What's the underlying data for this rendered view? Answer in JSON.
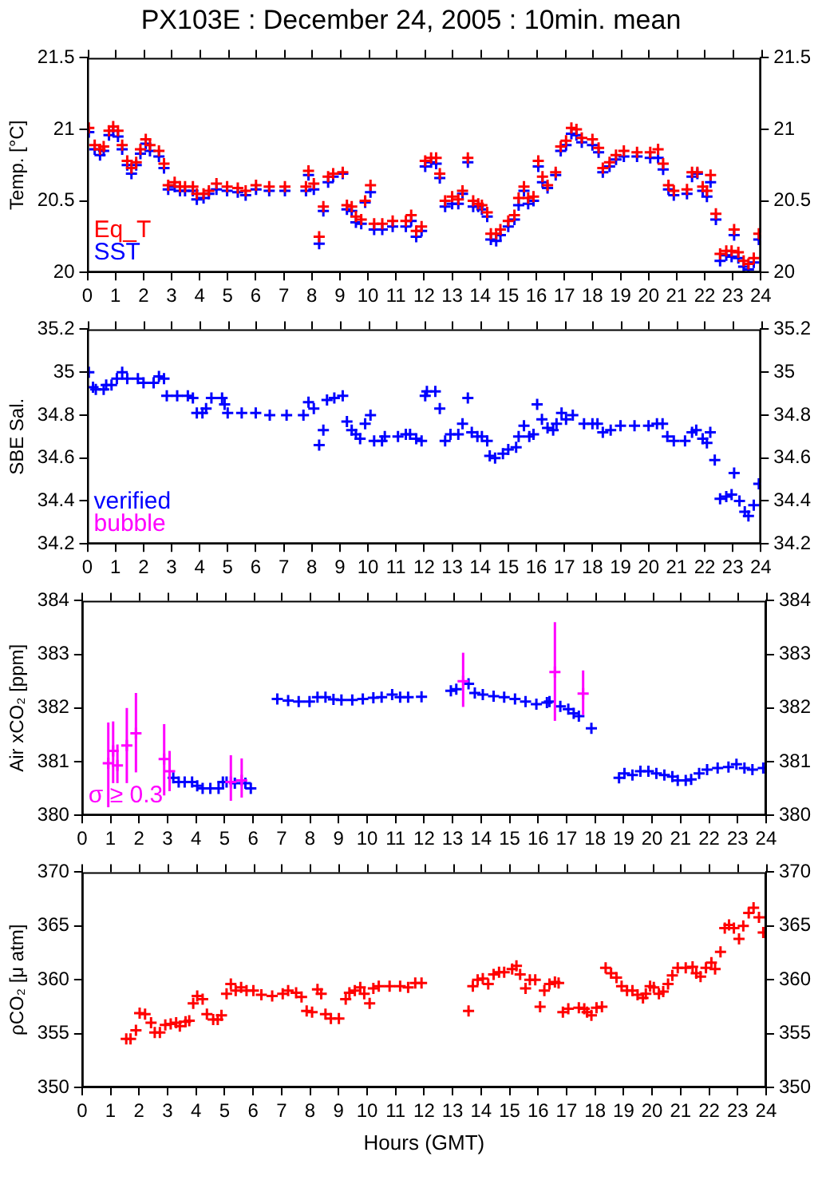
{
  "chart_data": [
    {
      "type": "scatter",
      "title": "PX103E : December 24, 2005 : 10min. mean",
      "ylabel": "Temp. [°C]",
      "xlim": [
        0,
        24
      ],
      "xticks": [
        0,
        1,
        2,
        3,
        4,
        5,
        6,
        7,
        8,
        9,
        10,
        11,
        12,
        13,
        14,
        15,
        16,
        17,
        18,
        19,
        20,
        21,
        22,
        23,
        24
      ],
      "ylim": [
        20,
        21.5
      ],
      "yticks": [
        20,
        20.5,
        21,
        21.5
      ],
      "y2lim": [
        20,
        21.5
      ],
      "y2ticks": [
        20,
        20.5,
        21,
        21.5
      ],
      "marker": "cross",
      "grid": false,
      "legend": "bottom left",
      "series": [
        {
          "name": "Eq_T",
          "color": "#ff0000",
          "x": [
            0.05,
            0.26,
            0.45,
            0.58,
            0.77,
            0.92,
            1.09,
            1.24,
            1.42,
            1.57,
            1.74,
            1.89,
            2.08,
            2.23,
            2.55,
            2.73,
            2.88,
            3.11,
            3.3,
            3.48,
            3.76,
            3.9,
            4.14,
            4.33,
            4.6,
            4.98,
            5.36,
            5.64,
            6.01,
            6.48,
            7.04,
            7.79,
            7.88,
            8.07,
            8.26,
            8.41,
            8.58,
            8.76,
            9.1,
            9.25,
            9.42,
            9.57,
            9.76,
            9.9,
            10.09,
            10.22,
            10.51,
            10.88,
            11.35,
            11.54,
            11.72,
            11.91,
            12.04,
            12.25,
            12.43,
            12.56,
            12.75,
            13.0,
            13.22,
            13.37,
            13.56,
            13.75,
            13.93,
            14.06,
            14.25,
            14.38,
            14.57,
            14.72,
            15.0,
            15.22,
            15.37,
            15.56,
            15.71,
            15.9,
            16.07,
            16.22,
            16.4,
            16.69,
            16.87,
            17.06,
            17.25,
            17.43,
            17.62,
            18.0,
            18.22,
            18.37,
            18.61,
            18.84,
            19.12,
            19.59,
            20.06,
            20.34,
            20.52,
            20.71,
            20.9,
            21.37,
            21.55,
            21.74,
            21.93,
            22.08,
            22.21,
            22.4,
            22.55,
            22.77,
            22.96,
            23.05,
            23.2,
            23.39,
            23.56,
            23.75,
            23.93
          ],
          "values": [
            21.01,
            20.89,
            20.86,
            20.88,
            20.99,
            21.02,
            20.99,
            20.89,
            20.78,
            20.73,
            20.77,
            20.86,
            20.93,
            20.89,
            20.85,
            20.76,
            20.61,
            20.63,
            20.6,
            20.6,
            20.6,
            20.55,
            20.55,
            20.57,
            20.62,
            20.6,
            20.59,
            20.57,
            20.61,
            20.6,
            20.6,
            20.6,
            20.71,
            20.62,
            20.25,
            20.46,
            20.67,
            20.69,
            20.7,
            20.47,
            20.46,
            20.39,
            20.37,
            20.5,
            20.61,
            20.34,
            20.34,
            20.36,
            20.36,
            20.4,
            20.29,
            20.32,
            20.78,
            20.8,
            20.8,
            20.69,
            20.5,
            20.53,
            20.51,
            20.57,
            20.8,
            20.5,
            20.48,
            20.47,
            20.42,
            20.27,
            20.27,
            20.3,
            20.36,
            20.4,
            20.52,
            20.6,
            20.52,
            20.53,
            20.78,
            20.67,
            20.61,
            20.7,
            20.88,
            20.92,
            21.01,
            21.0,
            20.94,
            20.93,
            20.87,
            20.73,
            20.77,
            20.82,
            20.85,
            20.84,
            20.84,
            20.86,
            20.76,
            20.61,
            20.57,
            20.58,
            20.7,
            20.7,
            20.6,
            20.57,
            20.68,
            20.41,
            20.13,
            20.15,
            20.15,
            20.3,
            20.14,
            20.08,
            20.06,
            20.1,
            20.27
          ]
        },
        {
          "name": "SST",
          "color": "#0000ff",
          "x": [
            0.05,
            0.26,
            0.45,
            0.58,
            0.77,
            0.92,
            1.09,
            1.24,
            1.42,
            1.57,
            1.74,
            1.89,
            2.08,
            2.23,
            2.55,
            2.73,
            2.88,
            3.11,
            3.3,
            3.48,
            3.76,
            3.9,
            4.14,
            4.33,
            4.6,
            4.98,
            5.36,
            5.64,
            6.01,
            6.48,
            7.04,
            7.79,
            7.88,
            8.07,
            8.26,
            8.41,
            8.58,
            8.76,
            9.1,
            9.25,
            9.42,
            9.57,
            9.76,
            9.9,
            10.09,
            10.22,
            10.51,
            10.88,
            11.35,
            11.54,
            11.72,
            11.91,
            12.04,
            12.25,
            12.43,
            12.56,
            12.75,
            13.0,
            13.22,
            13.37,
            13.56,
            13.75,
            13.93,
            14.06,
            14.25,
            14.38,
            14.57,
            14.72,
            15.0,
            15.22,
            15.37,
            15.56,
            15.71,
            15.9,
            16.07,
            16.22,
            16.4,
            16.69,
            16.87,
            17.06,
            17.25,
            17.43,
            17.62,
            18.0,
            18.22,
            18.37,
            18.61,
            18.84,
            19.12,
            19.59,
            20.06,
            20.34,
            20.52,
            20.71,
            20.9,
            21.37,
            21.55,
            21.74,
            21.93,
            22.08,
            22.21,
            22.4,
            22.55,
            22.77,
            22.96,
            23.05,
            23.2,
            23.39,
            23.56,
            23.75,
            23.93
          ],
          "values": [
            20.98,
            20.86,
            20.82,
            20.85,
            20.96,
            20.99,
            20.95,
            20.86,
            20.75,
            20.69,
            20.75,
            20.83,
            20.9,
            20.85,
            20.81,
            20.73,
            20.58,
            20.6,
            20.57,
            20.57,
            20.57,
            20.51,
            20.52,
            20.55,
            20.58,
            20.57,
            20.56,
            20.54,
            20.58,
            20.57,
            20.57,
            20.57,
            20.68,
            20.58,
            20.2,
            20.43,
            20.63,
            20.67,
            20.69,
            20.44,
            20.43,
            20.35,
            20.34,
            20.49,
            20.56,
            20.3,
            20.3,
            20.32,
            20.32,
            20.36,
            20.25,
            20.29,
            20.74,
            20.77,
            20.76,
            20.66,
            20.46,
            20.48,
            20.48,
            20.55,
            20.77,
            20.46,
            20.46,
            20.44,
            20.39,
            20.23,
            20.22,
            20.26,
            20.32,
            20.37,
            20.47,
            20.57,
            20.48,
            20.5,
            20.74,
            20.63,
            20.59,
            20.68,
            20.85,
            20.89,
            20.97,
            20.96,
            20.91,
            20.89,
            20.84,
            20.7,
            20.74,
            20.79,
            20.81,
            20.81,
            20.8,
            20.8,
            20.72,
            20.58,
            20.54,
            20.55,
            20.67,
            20.69,
            20.57,
            20.53,
            20.63,
            20.37,
            20.08,
            20.12,
            20.11,
            20.26,
            20.1,
            20.04,
            20.02,
            20.07,
            20.23
          ]
        }
      ]
    },
    {
      "type": "scatter",
      "ylabel": "SBE Sal.",
      "xlim": [
        0,
        24
      ],
      "xticks": [
        0,
        1,
        2,
        3,
        4,
        5,
        6,
        7,
        8,
        9,
        10,
        11,
        12,
        13,
        14,
        15,
        16,
        17,
        18,
        19,
        20,
        21,
        22,
        23,
        24
      ],
      "ylim": [
        34.2,
        35.2
      ],
      "yticks": [
        34.2,
        34.4,
        34.6,
        34.8,
        35,
        35.2
      ],
      "y2lim": [
        34.2,
        35.2
      ],
      "y2ticks": [
        34.2,
        34.4,
        34.6,
        34.8,
        35,
        35.2
      ],
      "marker": "cross",
      "grid": false,
      "legend": "bottom left",
      "series": [
        {
          "name": "verified",
          "color": "#0000ff",
          "x": [
            0.05,
            0.2,
            0.3,
            0.58,
            0.67,
            0.86,
            1.05,
            1.24,
            1.42,
            1.8,
            2.0,
            2.36,
            2.55,
            2.73,
            2.83,
            3.2,
            3.58,
            3.76,
            3.9,
            4.1,
            4.23,
            4.42,
            4.8,
            4.89,
            5.0,
            5.5,
            6.0,
            6.5,
            7.1,
            7.7,
            7.88,
            8.07,
            8.26,
            8.41,
            8.54,
            8.8,
            9.1,
            9.25,
            9.42,
            9.57,
            9.72,
            9.9,
            10.09,
            10.22,
            10.5,
            10.6,
            11.07,
            11.35,
            11.5,
            11.72,
            11.91,
            12.04,
            12.1,
            12.4,
            12.56,
            12.75,
            12.94,
            13.22,
            13.37,
            13.56,
            13.7,
            13.9,
            14.06,
            14.25,
            14.34,
            14.53,
            14.81,
            15.0,
            15.28,
            15.37,
            15.56,
            15.75,
            15.9,
            16.03,
            16.2,
            16.4,
            16.6,
            16.72,
            16.9,
            17.06,
            17.3,
            17.7,
            18.0,
            18.18,
            18.37,
            18.65,
            19.0,
            19.5,
            20.0,
            20.3,
            20.5,
            20.67,
            20.9,
            21.3,
            21.55,
            21.7,
            21.93,
            22.08,
            22.2,
            22.36,
            22.55,
            22.77,
            22.96,
            23.05,
            23.24,
            23.43,
            23.56,
            23.75,
            23.93
          ],
          "values": [
            35.0,
            34.93,
            34.92,
            34.92,
            34.94,
            34.94,
            34.97,
            35.0,
            34.97,
            34.97,
            34.95,
            34.95,
            34.98,
            34.97,
            34.89,
            34.89,
            34.89,
            34.88,
            34.81,
            34.81,
            34.83,
            34.88,
            34.88,
            34.85,
            34.81,
            34.81,
            34.81,
            34.8,
            34.8,
            34.8,
            34.86,
            34.83,
            34.66,
            34.73,
            34.87,
            34.88,
            34.89,
            34.77,
            34.73,
            34.71,
            34.69,
            34.76,
            34.8,
            34.68,
            34.68,
            34.7,
            34.7,
            34.71,
            34.71,
            34.69,
            34.68,
            34.89,
            34.91,
            34.91,
            34.83,
            34.68,
            34.71,
            34.71,
            34.76,
            34.88,
            34.72,
            34.7,
            34.7,
            34.68,
            34.61,
            34.6,
            34.62,
            34.64,
            34.65,
            34.7,
            34.75,
            34.7,
            34.71,
            34.85,
            34.78,
            34.74,
            34.73,
            34.76,
            34.81,
            34.78,
            34.8,
            34.76,
            34.76,
            34.76,
            34.72,
            34.73,
            34.75,
            34.75,
            34.75,
            34.76,
            34.76,
            34.7,
            34.68,
            34.68,
            34.72,
            34.73,
            34.69,
            34.67,
            34.72,
            34.59,
            34.41,
            34.42,
            34.43,
            34.53,
            34.4,
            34.35,
            34.33,
            34.38,
            34.48
          ]
        },
        {
          "name": "bubble",
          "color": "#ff00ff"
        }
      ]
    },
    {
      "type": "scatter",
      "ylabel": "Air xCO₂ [ppm]",
      "xlim": [
        0,
        24
      ],
      "xticks": [
        0,
        1,
        2,
        3,
        4,
        5,
        6,
        7,
        8,
        9,
        10,
        11,
        12,
        13,
        14,
        15,
        16,
        17,
        18,
        19,
        20,
        21,
        22,
        23,
        24
      ],
      "ylim": [
        380,
        384
      ],
      "yticks": [
        380,
        381,
        382,
        383,
        384
      ],
      "y2lim": [
        380,
        384
      ],
      "y2ticks": [
        380,
        381,
        382,
        383,
        384
      ],
      "marker": "cross",
      "grid": false,
      "legend": "bottom left",
      "series": [
        {
          "name": "σ ≥ 0.3",
          "color": "#ff00ff",
          "x": [
            0.92,
            1.09,
            1.24,
            1.57,
            1.89,
            2.88,
            3.07,
            5.22,
            5.6,
            13.37,
            16.59,
            17.58
          ],
          "values": [
            380.97,
            381.2,
            380.93,
            381.3,
            381.53,
            381.05,
            380.82,
            380.62,
            380.65,
            382.5,
            382.67,
            382.27
          ],
          "errors": [
            [
              380.15,
              381.73
            ],
            [
              380.6,
              381.75
            ],
            [
              380.6,
              381.32
            ],
            [
              380.6,
              382.0
            ],
            [
              380.8,
              382.28
            ],
            [
              380.37,
              381.7
            ],
            [
              380.45,
              381.2
            ],
            [
              380.27,
              381.12
            ],
            [
              380.33,
              381.06
            ],
            [
              382.02,
              383.03
            ],
            [
              381.76,
              383.6
            ],
            [
              381.87,
              382.7
            ]
          ]
        },
        {
          "color": "#0000ff",
          "x": [
            3.2,
            3.39,
            3.6,
            3.86,
            4.04,
            4.23,
            4.5,
            4.79,
            4.94,
            5.07,
            5.36,
            5.73,
            5.92,
            6.85,
            7.23,
            7.6,
            7.98,
            8.26,
            8.54,
            8.82,
            9.1,
            9.48,
            9.85,
            10.22,
            10.51,
            10.88,
            11.16,
            11.44,
            11.91,
            12.94,
            13.13,
            13.56,
            13.78,
            14.06,
            14.44,
            14.81,
            15.19,
            15.56,
            15.94,
            16.31,
            16.4,
            16.78,
            17.06,
            17.25,
            17.43,
            17.87,
            18.84,
            19.03,
            19.31,
            19.59,
            19.87,
            20.15,
            20.43,
            20.71,
            20.9,
            21.18,
            21.37,
            21.65,
            21.93,
            22.3,
            22.68,
            22.96,
            23.24,
            23.52,
            23.9
          ],
          "values": [
            380.7,
            380.62,
            380.62,
            380.62,
            380.55,
            380.5,
            380.5,
            380.5,
            380.62,
            380.62,
            380.6,
            380.6,
            380.5,
            382.17,
            382.14,
            382.12,
            382.12,
            382.2,
            382.2,
            382.16,
            382.15,
            382.15,
            382.17,
            382.19,
            382.2,
            382.25,
            382.2,
            382.2,
            382.21,
            382.32,
            382.35,
            382.45,
            382.28,
            382.25,
            382.22,
            382.2,
            382.17,
            382.12,
            382.07,
            382.1,
            382.12,
            382.03,
            381.98,
            381.9,
            381.85,
            381.62,
            380.7,
            380.78,
            380.75,
            380.82,
            380.82,
            380.78,
            380.75,
            380.72,
            380.65,
            380.65,
            380.67,
            380.78,
            380.85,
            380.88,
            380.9,
            380.95,
            380.88,
            380.85,
            380.88
          ]
        }
      ]
    },
    {
      "type": "scatter",
      "ylabel": "ρCO₂ [μ atm]",
      "xlabel": "Hours (GMT)",
      "xlim": [
        0,
        24
      ],
      "xticks": [
        0,
        1,
        2,
        3,
        4,
        5,
        6,
        7,
        8,
        9,
        10,
        11,
        12,
        13,
        14,
        15,
        16,
        17,
        18,
        19,
        20,
        21,
        22,
        23,
        24
      ],
      "ylim": [
        350,
        370
      ],
      "yticks": [
        350,
        355,
        360,
        365,
        370
      ],
      "y2lim": [
        350,
        370
      ],
      "y2ticks": [
        350,
        355,
        360,
        365,
        370
      ],
      "marker": "cross",
      "grid": false,
      "series": [
        {
          "color": "#ff0000",
          "x": [
            1.55,
            1.7,
            1.89,
            2.02,
            2.21,
            2.42,
            2.55,
            2.73,
            2.92,
            3.11,
            3.3,
            3.43,
            3.63,
            3.76,
            3.9,
            4.04,
            4.23,
            4.38,
            4.6,
            4.76,
            4.89,
            5.07,
            5.22,
            5.39,
            5.58,
            5.77,
            6.01,
            6.29,
            6.67,
            7.04,
            7.23,
            7.51,
            7.7,
            7.88,
            8.07,
            8.26,
            8.39,
            8.54,
            8.73,
            9.01,
            9.25,
            9.38,
            9.57,
            9.76,
            9.9,
            10.09,
            10.22,
            10.41,
            10.79,
            11.16,
            11.44,
            11.69,
            11.91,
            13.56,
            13.71,
            13.88,
            14.06,
            14.25,
            14.44,
            14.63,
            14.81,
            15.09,
            15.24,
            15.37,
            15.56,
            15.71,
            15.9,
            16.07,
            16.22,
            16.4,
            16.59,
            16.72,
            16.87,
            17.06,
            17.43,
            17.62,
            17.72,
            17.87,
            18.05,
            18.24,
            18.37,
            18.56,
            18.75,
            18.93,
            19.12,
            19.31,
            19.49,
            19.68,
            19.78,
            19.93,
            20.06,
            20.24,
            20.39,
            20.56,
            20.71,
            20.9,
            21.18,
            21.42,
            21.55,
            21.7,
            21.89,
            22.08,
            22.21,
            22.4,
            22.55,
            22.7,
            22.87,
            23.05,
            23.2,
            23.39,
            23.56,
            23.75,
            23.9
          ],
          "values": [
            354.5,
            354.5,
            355.3,
            356.9,
            356.8,
            356.0,
            355.1,
            355.1,
            355.8,
            355.9,
            356.0,
            355.7,
            356.1,
            356.2,
            357.8,
            358.5,
            358.2,
            356.8,
            356.3,
            356.3,
            356.7,
            358.7,
            359.6,
            359.0,
            359.3,
            359.0,
            359.0,
            358.6,
            358.5,
            358.7,
            359.0,
            358.8,
            358.4,
            357.1,
            357.0,
            359.1,
            358.7,
            356.8,
            356.4,
            356.4,
            358.2,
            358.8,
            359.0,
            359.3,
            358.7,
            357.8,
            359.2,
            359.4,
            359.4,
            359.4,
            359.3,
            359.7,
            359.7,
            357.1,
            359.4,
            360.0,
            360.1,
            359.6,
            360.5,
            360.7,
            360.7,
            361.0,
            361.3,
            360.5,
            359.2,
            360.0,
            360.0,
            357.5,
            359.0,
            359.6,
            359.8,
            359.7,
            357.0,
            357.3,
            357.4,
            357.3,
            357.0,
            356.7,
            357.4,
            357.5,
            361.1,
            360.6,
            360.2,
            359.4,
            359.0,
            359.0,
            358.6,
            358.3,
            358.7,
            359.4,
            359.3,
            358.7,
            358.9,
            359.6,
            360.4,
            361.1,
            361.1,
            361.2,
            360.6,
            360.3,
            361.1,
            361.6,
            361.0,
            362.6,
            364.8,
            365.1,
            364.8,
            363.8,
            365.0,
            366.2,
            366.7,
            365.8,
            364.4
          ]
        }
      ]
    }
  ]
}
